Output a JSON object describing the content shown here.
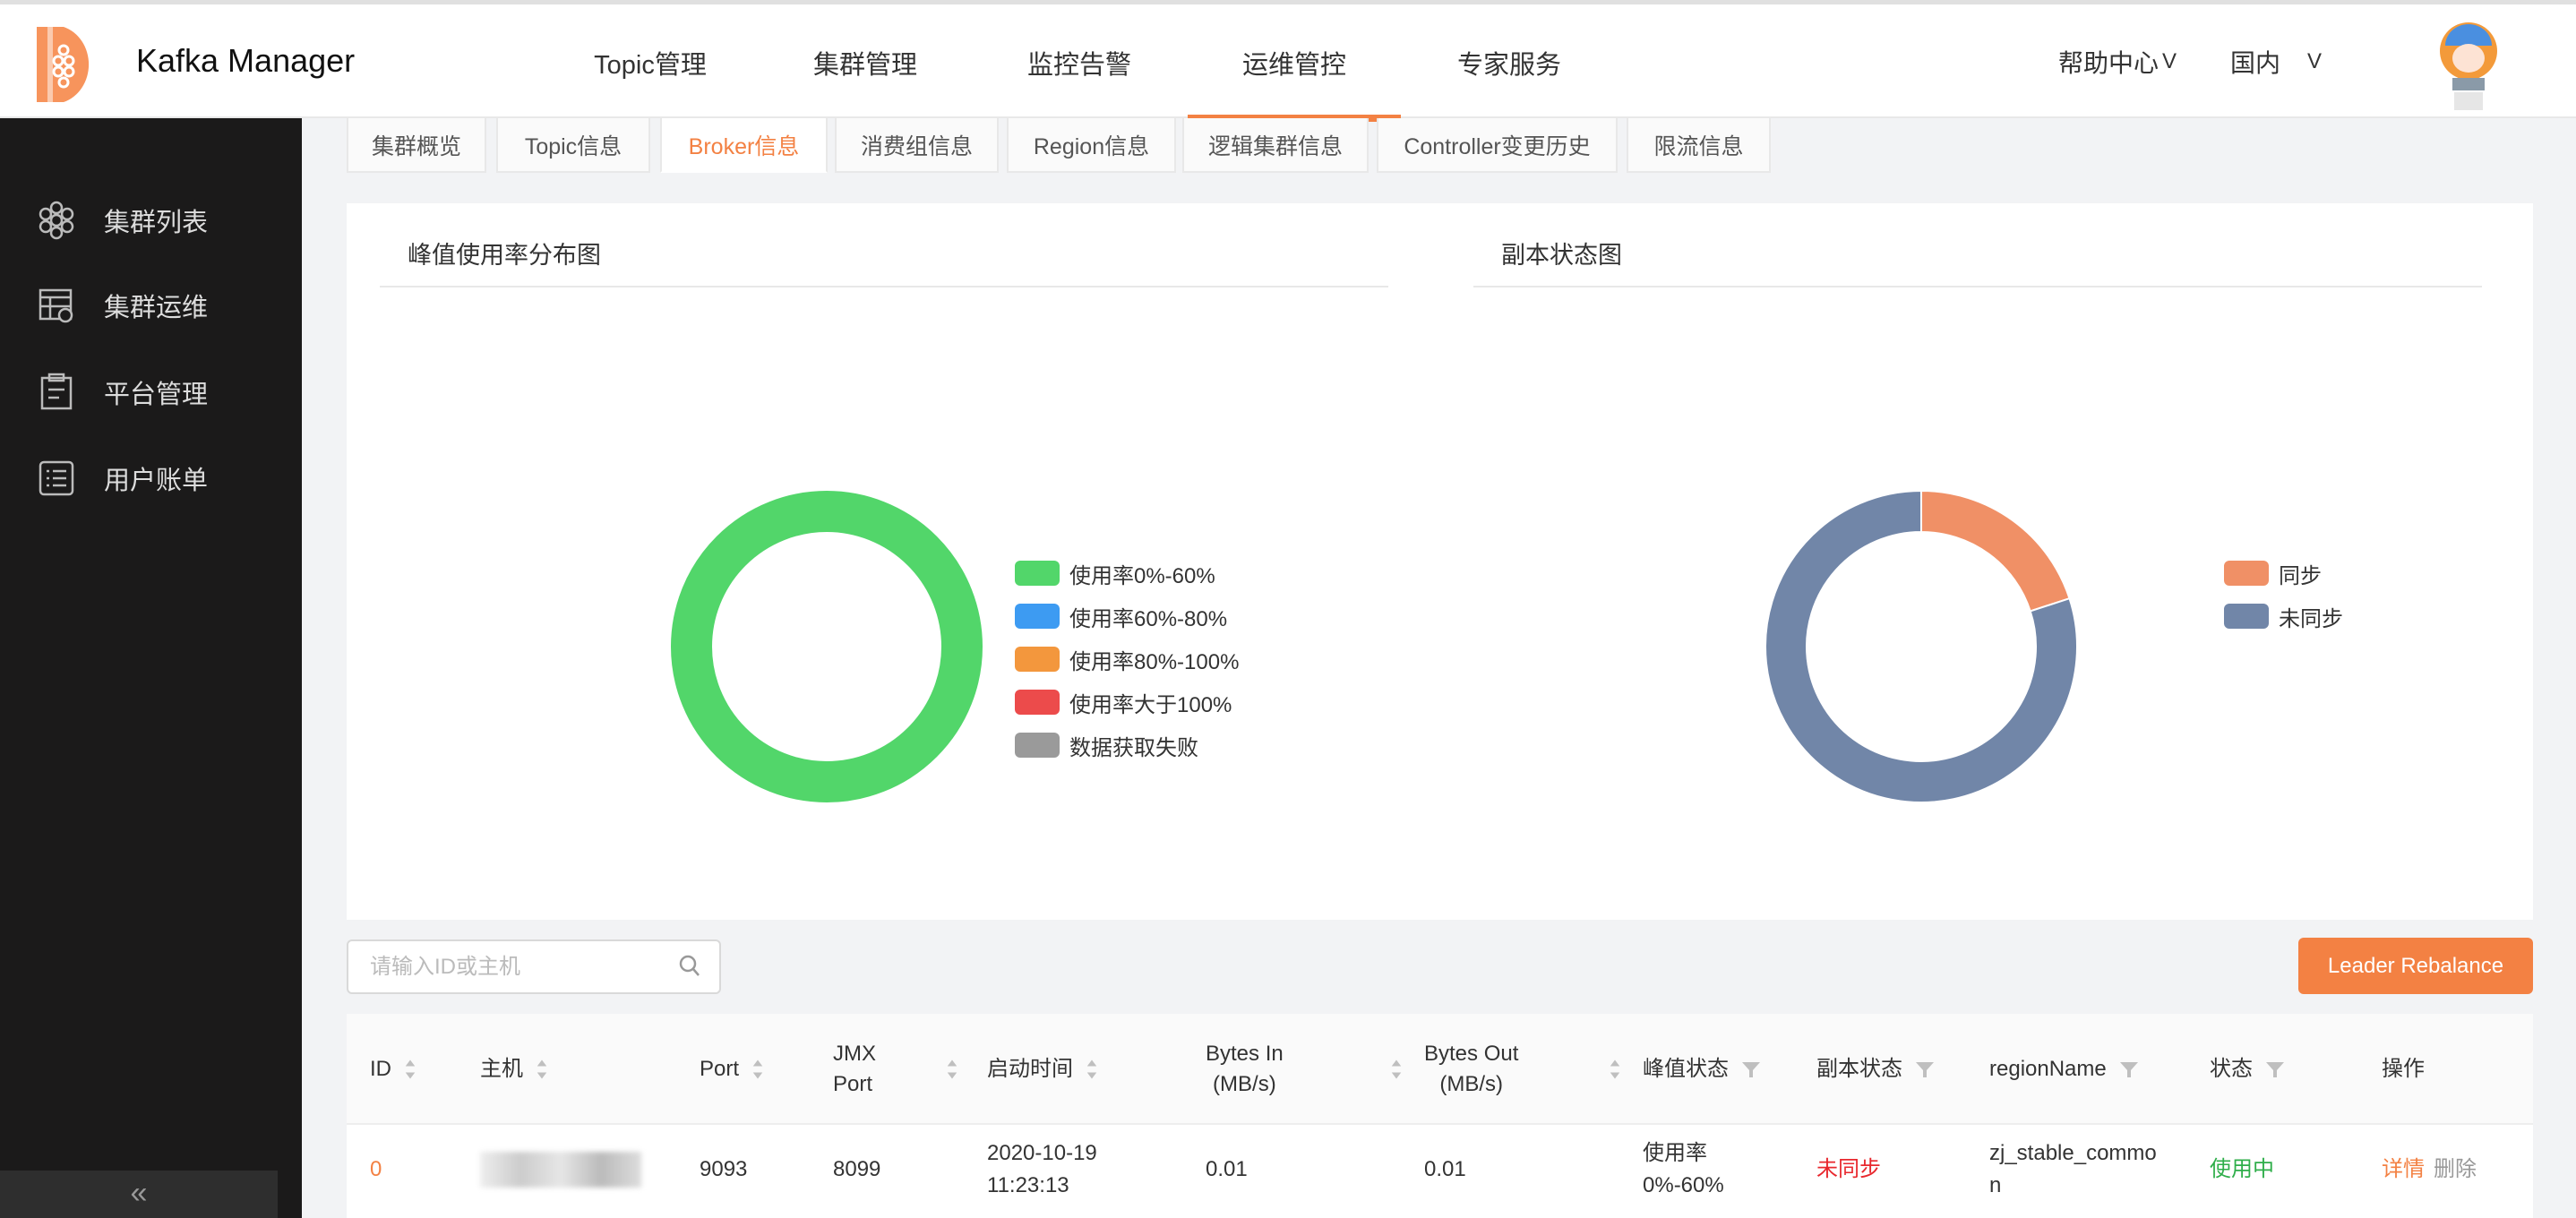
{
  "header": {
    "app_title": "Kafka Manager",
    "nav": [
      "Topic管理",
      "集群管理",
      "监控告警",
      "运维管控",
      "专家服务"
    ],
    "active_nav": "运维管控",
    "help": "帮助中心",
    "region": "国内",
    "accent": "#f38143"
  },
  "sidebar": {
    "items": [
      {
        "label": "集群列表",
        "icon": "hexagon-cluster-icon"
      },
      {
        "label": "集群运维",
        "icon": "table-gear-icon"
      },
      {
        "label": "平台管理",
        "icon": "clipboard-icon"
      },
      {
        "label": "用户账单",
        "icon": "list-icon"
      }
    ],
    "collapse": "«"
  },
  "tabs": [
    "集群概览",
    "Topic信息",
    "Broker信息",
    "消费组信息",
    "Region信息",
    "逻辑集群信息",
    "Controller变更历史",
    "限流信息"
  ],
  "active_tab": "Broker信息",
  "charts": {
    "peak": {
      "title": "峰值使用率分布图",
      "legend": [
        {
          "label": "使用率0%-60%",
          "color": "#52d66a"
        },
        {
          "label": "使用率60%-80%",
          "color": "#3d9bf2"
        },
        {
          "label": "使用率80%-100%",
          "color": "#f3973d"
        },
        {
          "label": "使用率大于100%",
          "color": "#ec4b4b"
        },
        {
          "label": "数据获取失败",
          "color": "#9a9a9a"
        }
      ]
    },
    "replica": {
      "title": "副本状态图",
      "legend": [
        {
          "label": "同步",
          "color": "#f09066"
        },
        {
          "label": "未同步",
          "color": "#7186a8"
        }
      ]
    }
  },
  "chart_data": [
    {
      "type": "pie",
      "donut": true,
      "labels": [
        "使用率0%-60%",
        "使用率60%-80%",
        "使用率80%-100%",
        "使用率大于100%",
        "数据获取失败"
      ],
      "values": [
        100,
        0,
        0,
        0,
        0
      ],
      "legend": "right"
    },
    {
      "type": "pie",
      "donut": true,
      "labels": [
        "同步",
        "未同步"
      ],
      "values": [
        20,
        80
      ],
      "legend": "right"
    }
  ],
  "search": {
    "placeholder": "请输入ID或主机"
  },
  "rebalance_label": "Leader Rebalance",
  "table": {
    "columns": [
      "ID",
      "主机",
      "Port",
      "JMX Port",
      "启动时间",
      "Bytes In (MB/s)",
      "Bytes Out (MB/s)",
      "峰值状态",
      "副本状态",
      "regionName",
      "状态",
      "操作"
    ],
    "rows": [
      {
        "id": "0",
        "port": "9093",
        "jmx": "8099",
        "start": "2020-10-19 11:23:13",
        "bytes_in": "0.01",
        "bytes_out": "0.01",
        "peak": "使用率 0%-60%",
        "replica": "未同步",
        "region": "zj_stable_common",
        "status": "使用中",
        "actions": [
          "详情",
          "删除"
        ]
      }
    ]
  }
}
